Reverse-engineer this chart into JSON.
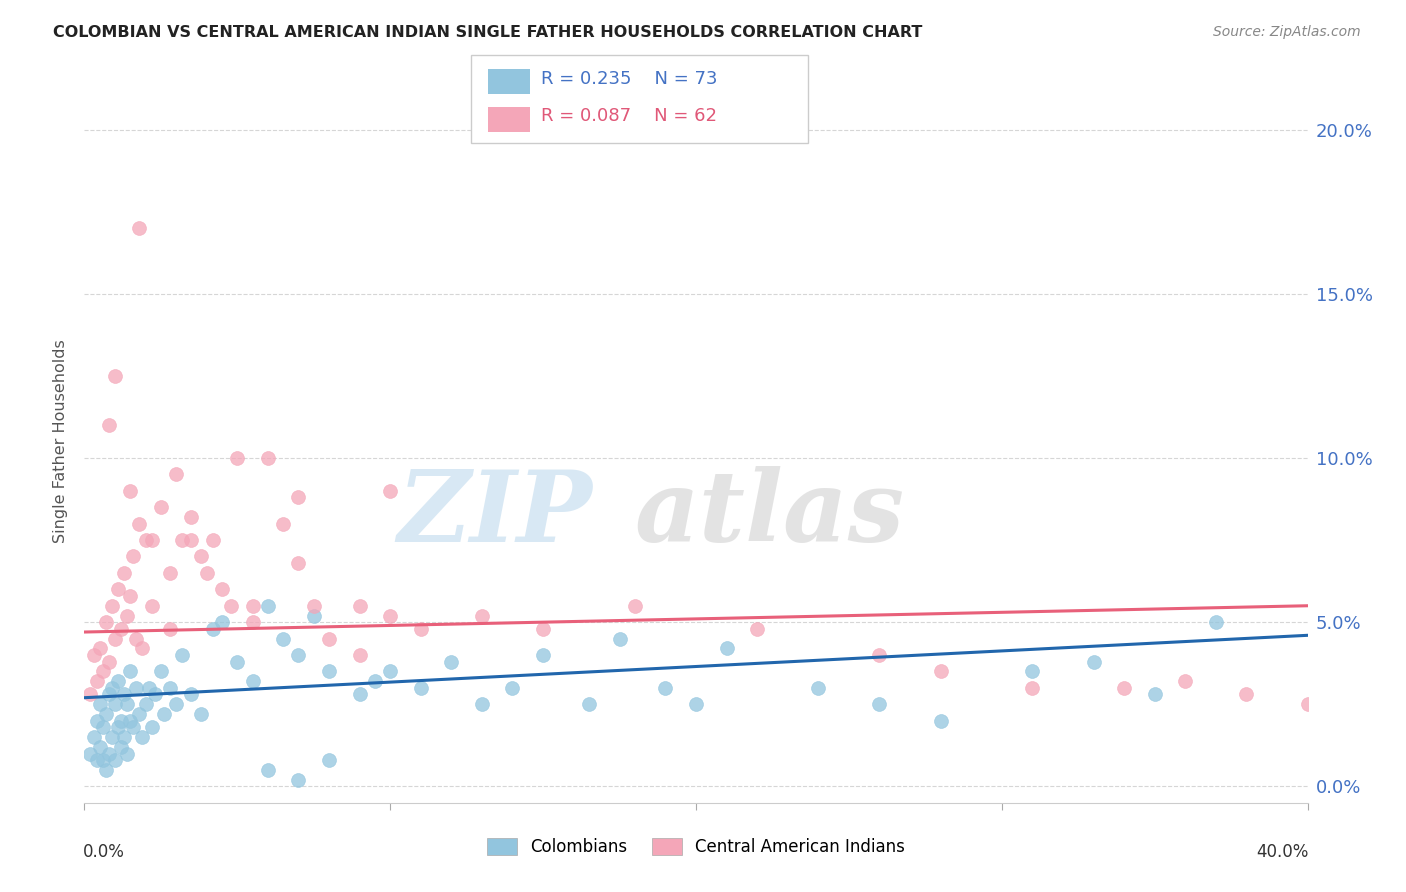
{
  "title": "COLOMBIAN VS CENTRAL AMERICAN INDIAN SINGLE FATHER HOUSEHOLDS CORRELATION CHART",
  "source": "Source: ZipAtlas.com",
  "ylabel": "Single Father Households",
  "ytick_labels": [
    "0.0%",
    "5.0%",
    "10.0%",
    "15.0%",
    "20.0%"
  ],
  "ytick_values": [
    0.0,
    0.05,
    0.1,
    0.15,
    0.2
  ],
  "xlim": [
    0.0,
    0.4
  ],
  "ylim": [
    -0.005,
    0.215
  ],
  "legend_blue_r": "R = 0.235",
  "legend_blue_n": "N = 73",
  "legend_pink_r": "R = 0.087",
  "legend_pink_n": "N = 62",
  "blue_color": "#92c5de",
  "pink_color": "#f4a6b8",
  "blue_line_color": "#2166ac",
  "pink_line_color": "#e8607a",
  "legend_label_blue": "Colombians",
  "legend_label_pink": "Central American Indians",
  "blue_scatter_x": [
    0.002,
    0.003,
    0.004,
    0.004,
    0.005,
    0.005,
    0.006,
    0.006,
    0.007,
    0.007,
    0.008,
    0.008,
    0.009,
    0.009,
    0.01,
    0.01,
    0.011,
    0.011,
    0.012,
    0.012,
    0.013,
    0.013,
    0.014,
    0.014,
    0.015,
    0.015,
    0.016,
    0.017,
    0.018,
    0.019,
    0.02,
    0.021,
    0.022,
    0.023,
    0.025,
    0.026,
    0.028,
    0.03,
    0.032,
    0.035,
    0.038,
    0.042,
    0.045,
    0.05,
    0.055,
    0.06,
    0.065,
    0.07,
    0.075,
    0.08,
    0.09,
    0.095,
    0.1,
    0.11,
    0.12,
    0.13,
    0.14,
    0.15,
    0.165,
    0.175,
    0.19,
    0.2,
    0.21,
    0.24,
    0.26,
    0.28,
    0.31,
    0.33,
    0.35,
    0.37,
    0.06,
    0.07,
    0.08
  ],
  "blue_scatter_y": [
    0.01,
    0.015,
    0.008,
    0.02,
    0.012,
    0.025,
    0.008,
    0.018,
    0.005,
    0.022,
    0.01,
    0.028,
    0.015,
    0.03,
    0.008,
    0.025,
    0.018,
    0.032,
    0.012,
    0.02,
    0.015,
    0.028,
    0.01,
    0.025,
    0.02,
    0.035,
    0.018,
    0.03,
    0.022,
    0.015,
    0.025,
    0.03,
    0.018,
    0.028,
    0.035,
    0.022,
    0.03,
    0.025,
    0.04,
    0.028,
    0.022,
    0.048,
    0.05,
    0.038,
    0.032,
    0.055,
    0.045,
    0.04,
    0.052,
    0.035,
    0.028,
    0.032,
    0.035,
    0.03,
    0.038,
    0.025,
    0.03,
    0.04,
    0.025,
    0.045,
    0.03,
    0.025,
    0.042,
    0.03,
    0.025,
    0.02,
    0.035,
    0.038,
    0.028,
    0.05,
    0.005,
    0.002,
    0.008
  ],
  "pink_scatter_x": [
    0.002,
    0.003,
    0.004,
    0.005,
    0.006,
    0.007,
    0.008,
    0.009,
    0.01,
    0.011,
    0.012,
    0.013,
    0.014,
    0.015,
    0.016,
    0.017,
    0.018,
    0.019,
    0.02,
    0.022,
    0.025,
    0.028,
    0.03,
    0.032,
    0.035,
    0.038,
    0.04,
    0.045,
    0.048,
    0.05,
    0.055,
    0.06,
    0.065,
    0.07,
    0.075,
    0.08,
    0.09,
    0.1,
    0.11,
    0.13,
    0.15,
    0.18,
    0.22,
    0.26,
    0.28,
    0.31,
    0.34,
    0.36,
    0.38,
    0.4,
    0.008,
    0.01,
    0.015,
    0.018,
    0.022,
    0.028,
    0.035,
    0.042,
    0.055,
    0.07,
    0.09,
    0.1
  ],
  "pink_scatter_y": [
    0.028,
    0.04,
    0.032,
    0.042,
    0.035,
    0.05,
    0.038,
    0.055,
    0.045,
    0.06,
    0.048,
    0.065,
    0.052,
    0.058,
    0.07,
    0.045,
    0.08,
    0.042,
    0.075,
    0.055,
    0.085,
    0.065,
    0.095,
    0.075,
    0.082,
    0.07,
    0.065,
    0.06,
    0.055,
    0.1,
    0.055,
    0.1,
    0.08,
    0.068,
    0.055,
    0.045,
    0.055,
    0.052,
    0.048,
    0.052,
    0.048,
    0.055,
    0.048,
    0.04,
    0.035,
    0.03,
    0.03,
    0.032,
    0.028,
    0.025,
    0.11,
    0.125,
    0.09,
    0.17,
    0.075,
    0.048,
    0.075,
    0.075,
    0.05,
    0.088,
    0.04,
    0.09
  ],
  "blue_trend_x": [
    0.0,
    0.4
  ],
  "blue_trend_y": [
    0.027,
    0.046
  ],
  "pink_trend_x": [
    0.0,
    0.4
  ],
  "pink_trend_y": [
    0.047,
    0.055
  ],
  "grid_color": "#cccccc",
  "background_color": "#ffffff",
  "right_tick_color": "#4472c4",
  "title_color": "#222222",
  "source_color": "#888888"
}
